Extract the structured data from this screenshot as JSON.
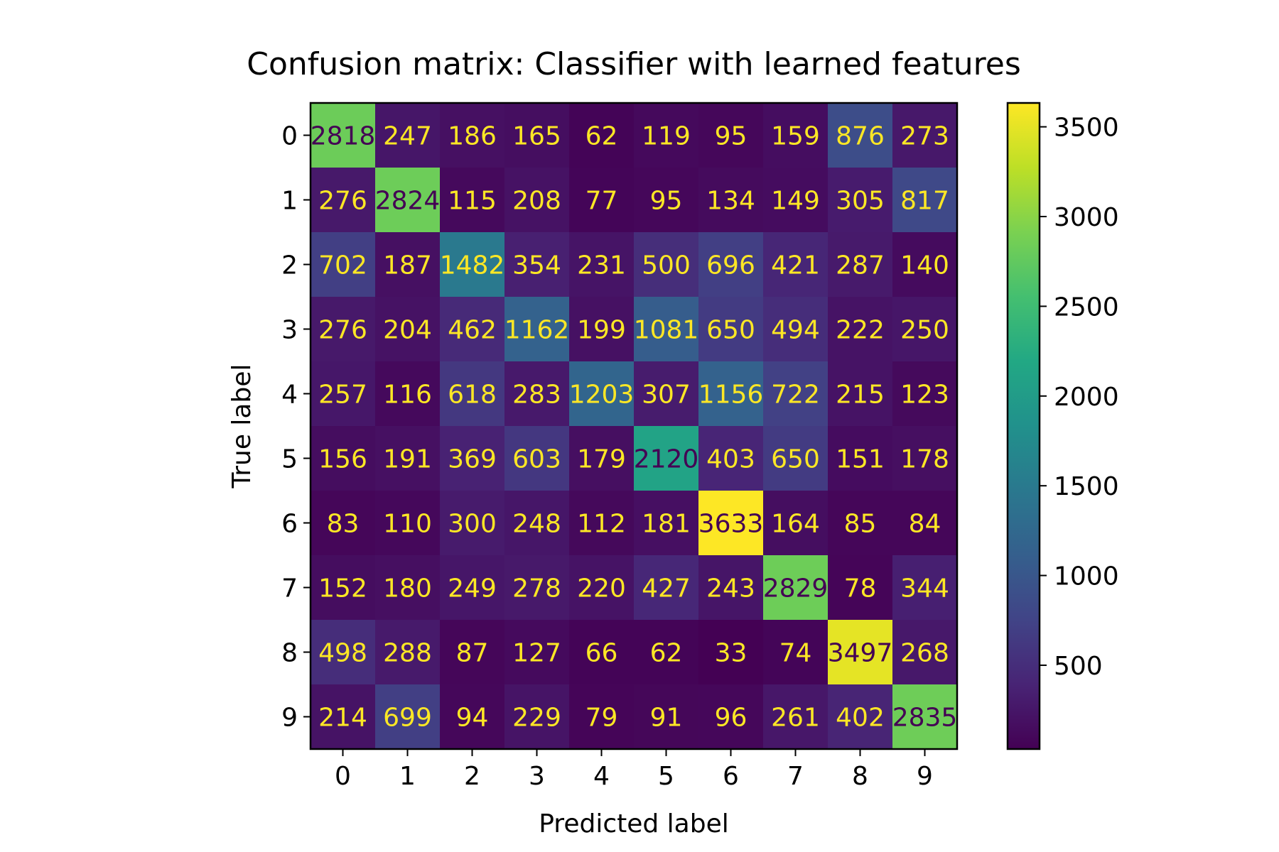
{
  "chart_data": {
    "type": "heatmap",
    "title": "Confusion matrix: Classifier with learned features",
    "xlabel": "Predicted label",
    "ylabel": "True label",
    "x_tick_labels": [
      "0",
      "1",
      "2",
      "3",
      "4",
      "5",
      "6",
      "7",
      "8",
      "9"
    ],
    "y_tick_labels": [
      "0",
      "1",
      "2",
      "3",
      "4",
      "5",
      "6",
      "7",
      "8",
      "9"
    ],
    "values": [
      [
        2818,
        247,
        186,
        165,
        62,
        119,
        95,
        159,
        876,
        273
      ],
      [
        276,
        2824,
        115,
        208,
        77,
        95,
        134,
        149,
        305,
        817
      ],
      [
        702,
        187,
        1482,
        354,
        231,
        500,
        696,
        421,
        287,
        140
      ],
      [
        276,
        204,
        462,
        1162,
        199,
        1081,
        650,
        494,
        222,
        250
      ],
      [
        257,
        116,
        618,
        283,
        1203,
        307,
        1156,
        722,
        215,
        123
      ],
      [
        156,
        191,
        369,
        603,
        179,
        2120,
        403,
        650,
        151,
        178
      ],
      [
        83,
        110,
        300,
        248,
        112,
        181,
        3633,
        164,
        85,
        84
      ],
      [
        152,
        180,
        249,
        278,
        220,
        427,
        243,
        2829,
        78,
        344
      ],
      [
        498,
        288,
        87,
        127,
        66,
        62,
        33,
        74,
        3497,
        268
      ],
      [
        214,
        699,
        94,
        229,
        79,
        91,
        96,
        261,
        402,
        2835
      ]
    ],
    "colormap": "viridis",
    "colorbar": {
      "min": 33,
      "max": 3633,
      "tick_values": [
        500,
        1000,
        1500,
        2000,
        2500,
        3000,
        3500
      ],
      "tick_labels": [
        "500",
        "1000",
        "1500",
        "2000",
        "2500",
        "3000",
        "3500"
      ]
    },
    "text_color_dark": "#440154",
    "text_color_light": "#fde725"
  }
}
